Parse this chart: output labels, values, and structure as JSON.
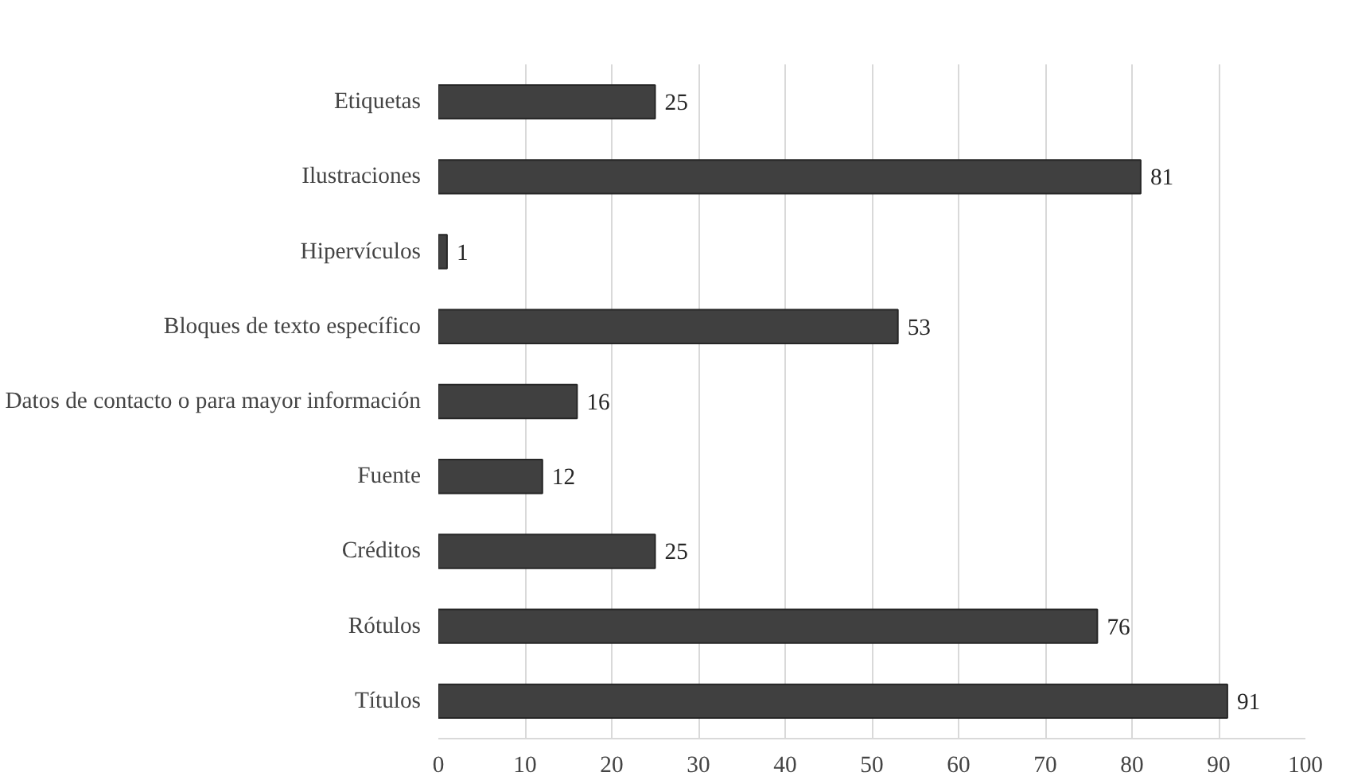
{
  "chart_data": {
    "type": "bar",
    "orientation": "horizontal",
    "categories": [
      "Etiquetas",
      "Ilustraciones",
      "Hipervículos",
      "Bloques de texto específico",
      "Datos de contacto o para mayor información",
      "Fuente",
      "Créditos",
      "Rótulos",
      "Títulos"
    ],
    "values": [
      25,
      81,
      1,
      53,
      16,
      12,
      25,
      76,
      91
    ],
    "color": "#404040",
    "data_labels": true,
    "xlim": [
      0,
      100
    ],
    "xticks": [
      0,
      10,
      20,
      30,
      40,
      50,
      60,
      70,
      80,
      90,
      100
    ],
    "grid": "x"
  }
}
